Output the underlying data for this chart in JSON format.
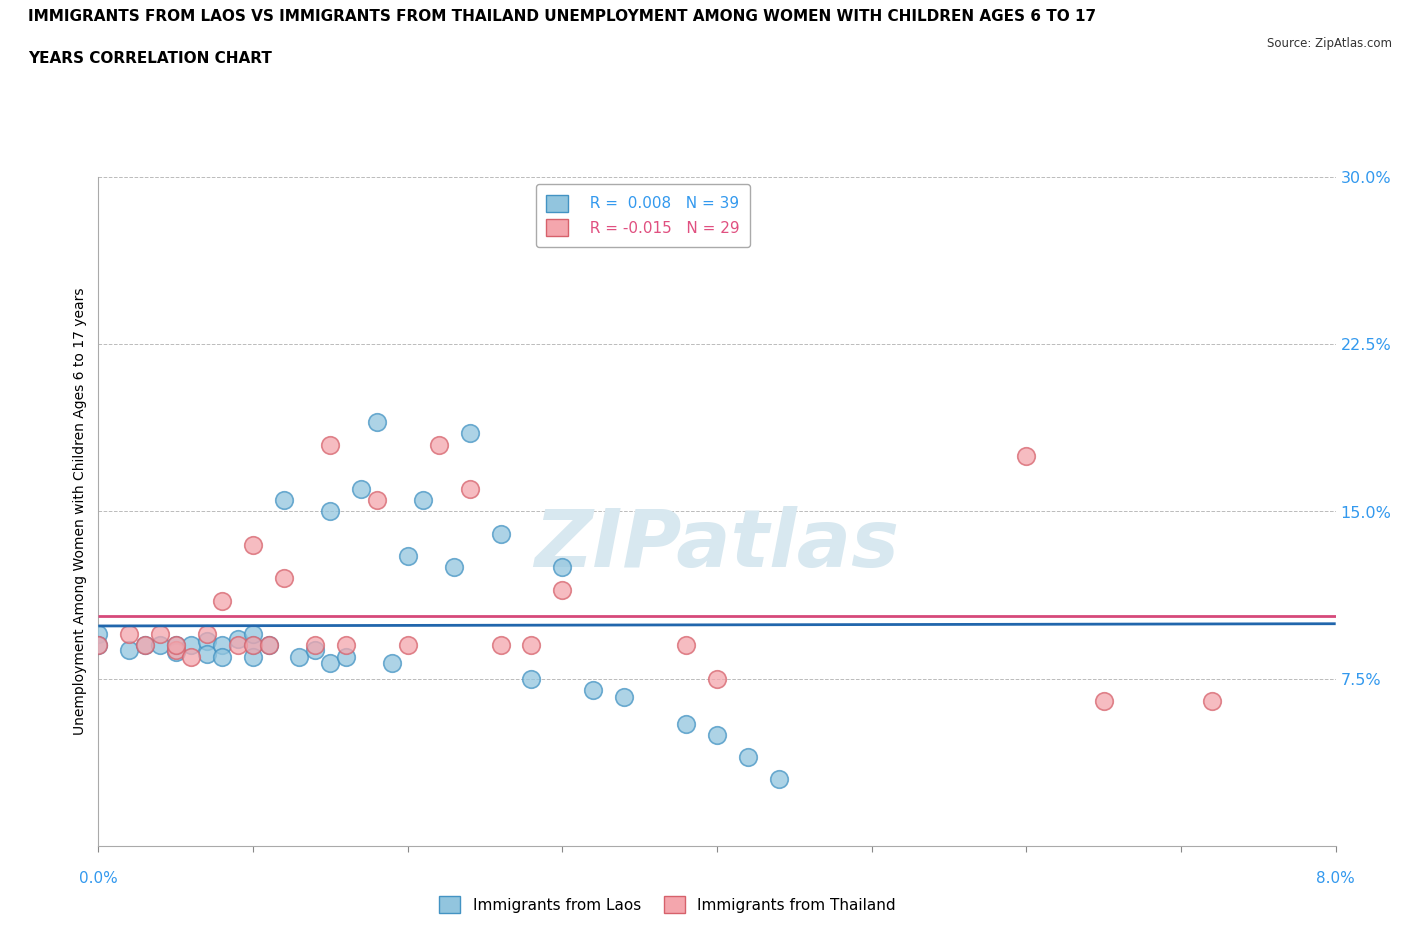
{
  "title_line1": "IMMIGRANTS FROM LAOS VS IMMIGRANTS FROM THAILAND UNEMPLOYMENT AMONG WOMEN WITH CHILDREN AGES 6 TO 17",
  "title_line2": "YEARS CORRELATION CHART",
  "source": "Source: ZipAtlas.com",
  "ylabel": "Unemployment Among Women with Children Ages 6 to 17 years",
  "xlim": [
    0.0,
    0.08
  ],
  "ylim": [
    0.0,
    0.3
  ],
  "yticks": [
    0.0,
    0.075,
    0.15,
    0.225,
    0.3
  ],
  "ytick_labels": [
    "",
    "7.5%",
    "15.0%",
    "22.5%",
    "30.0%"
  ],
  "legend_laos_R": "0.008",
  "legend_laos_N": "39",
  "legend_thailand_R": "-0.015",
  "legend_thailand_N": "29",
  "laos_color": "#92c5de",
  "laos_edge": "#4393c3",
  "thailand_color": "#f4a6ad",
  "thailand_edge": "#d6616b",
  "trend_laos_color": "#2166ac",
  "trend_thailand_color": "#d6497a",
  "background_color": "#ffffff",
  "grid_color": "#bbbbbb",
  "watermark_color": "#d8e8f0",
  "laos_x": [
    0.0,
    0.0,
    0.002,
    0.003,
    0.004,
    0.005,
    0.005,
    0.006,
    0.007,
    0.007,
    0.008,
    0.008,
    0.009,
    0.01,
    0.01,
    0.01,
    0.011,
    0.012,
    0.013,
    0.014,
    0.015,
    0.015,
    0.016,
    0.017,
    0.018,
    0.019,
    0.02,
    0.021,
    0.023,
    0.024,
    0.026,
    0.028,
    0.03,
    0.032,
    0.034,
    0.038,
    0.04,
    0.042,
    0.044
  ],
  "laos_y": [
    0.095,
    0.09,
    0.088,
    0.09,
    0.09,
    0.09,
    0.087,
    0.09,
    0.092,
    0.086,
    0.09,
    0.085,
    0.093,
    0.09,
    0.095,
    0.085,
    0.09,
    0.155,
    0.085,
    0.088,
    0.15,
    0.082,
    0.085,
    0.16,
    0.19,
    0.082,
    0.13,
    0.155,
    0.125,
    0.185,
    0.14,
    0.075,
    0.125,
    0.07,
    0.067,
    0.055,
    0.05,
    0.04,
    0.03
  ],
  "thailand_x": [
    0.0,
    0.002,
    0.003,
    0.004,
    0.005,
    0.005,
    0.006,
    0.007,
    0.008,
    0.009,
    0.01,
    0.01,
    0.011,
    0.012,
    0.014,
    0.015,
    0.016,
    0.018,
    0.02,
    0.022,
    0.024,
    0.026,
    0.028,
    0.03,
    0.038,
    0.04,
    0.06,
    0.065,
    0.072
  ],
  "thailand_y": [
    0.09,
    0.095,
    0.09,
    0.095,
    0.088,
    0.09,
    0.085,
    0.095,
    0.11,
    0.09,
    0.09,
    0.135,
    0.09,
    0.12,
    0.09,
    0.18,
    0.09,
    0.155,
    0.09,
    0.18,
    0.16,
    0.09,
    0.09,
    0.115,
    0.09,
    0.075,
    0.175,
    0.065,
    0.065
  ]
}
